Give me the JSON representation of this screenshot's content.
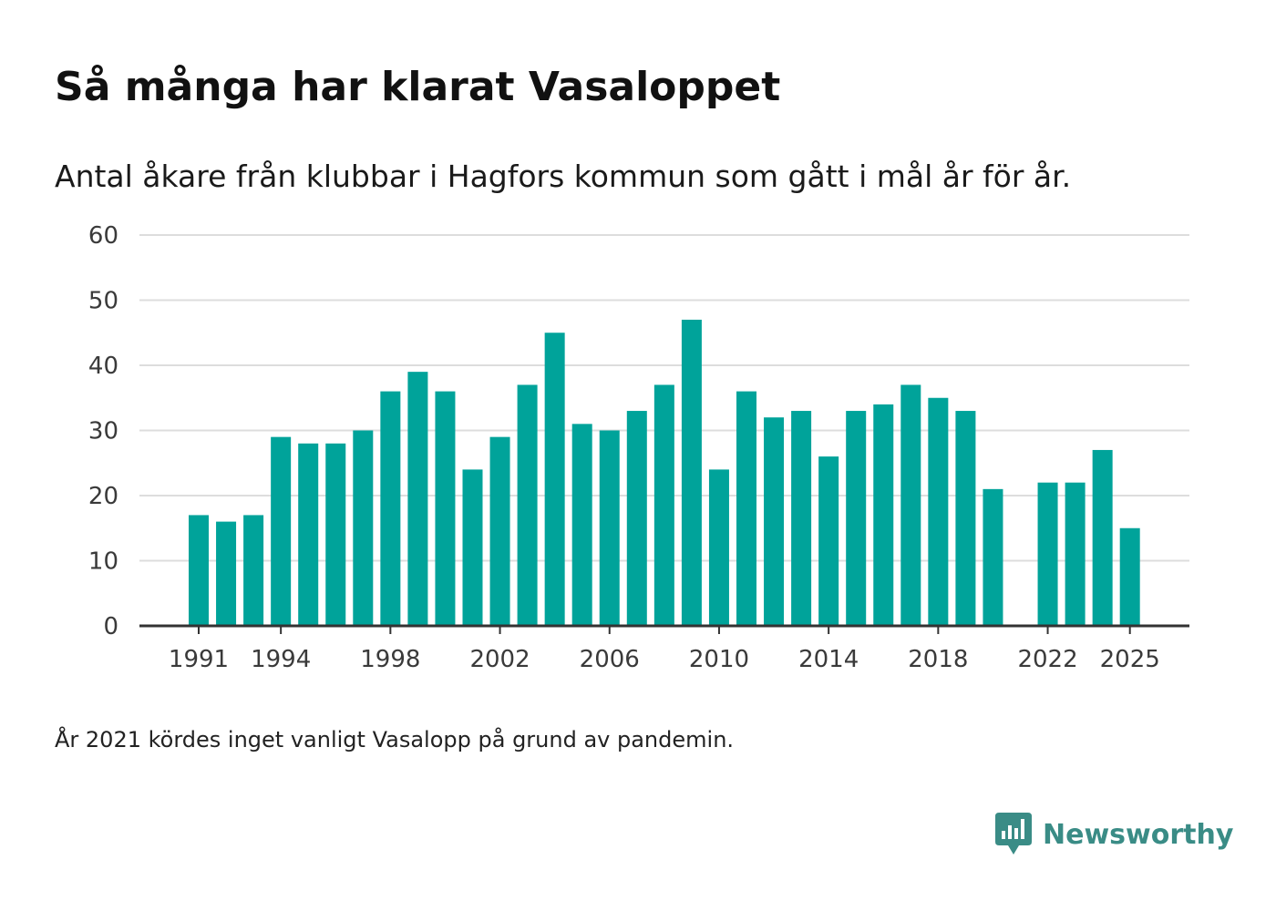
{
  "title": "Så många har klarat Vasaloppet",
  "subtitle": "Antal åkare från klubbar i Hagfors kommun som gått i mål år för år.",
  "note": "År 2021 kördes inget vanligt Vasalopp på grund av pandemin.",
  "brand": {
    "name": "Newsworthy",
    "color": "#3a8c86"
  },
  "colors": {
    "bar": "#00a39a",
    "grid": "#dddddd",
    "axis": "#333333"
  },
  "chart_data": {
    "type": "bar",
    "title": "Så många har klarat Vasaloppet",
    "xlabel": "",
    "ylabel": "",
    "ylim": [
      0,
      60
    ],
    "yticks": [
      0,
      10,
      20,
      30,
      40,
      50,
      60
    ],
    "xticks": [
      1991,
      1994,
      1998,
      2002,
      2006,
      2010,
      2014,
      2018,
      2022,
      2025
    ],
    "grid": true,
    "x": [
      1991,
      1992,
      1993,
      1994,
      1995,
      1996,
      1997,
      1998,
      1999,
      2000,
      2001,
      2002,
      2003,
      2004,
      2005,
      2006,
      2007,
      2008,
      2009,
      2010,
      2011,
      2012,
      2013,
      2014,
      2015,
      2016,
      2017,
      2018,
      2019,
      2020,
      2021,
      2022,
      2023,
      2024,
      2025
    ],
    "values": [
      17,
      16,
      17,
      29,
      28,
      28,
      30,
      36,
      39,
      36,
      24,
      29,
      37,
      45,
      31,
      30,
      33,
      37,
      47,
      24,
      36,
      32,
      33,
      26,
      33,
      34,
      37,
      35,
      33,
      21,
      null,
      22,
      22,
      27,
      15
    ]
  }
}
